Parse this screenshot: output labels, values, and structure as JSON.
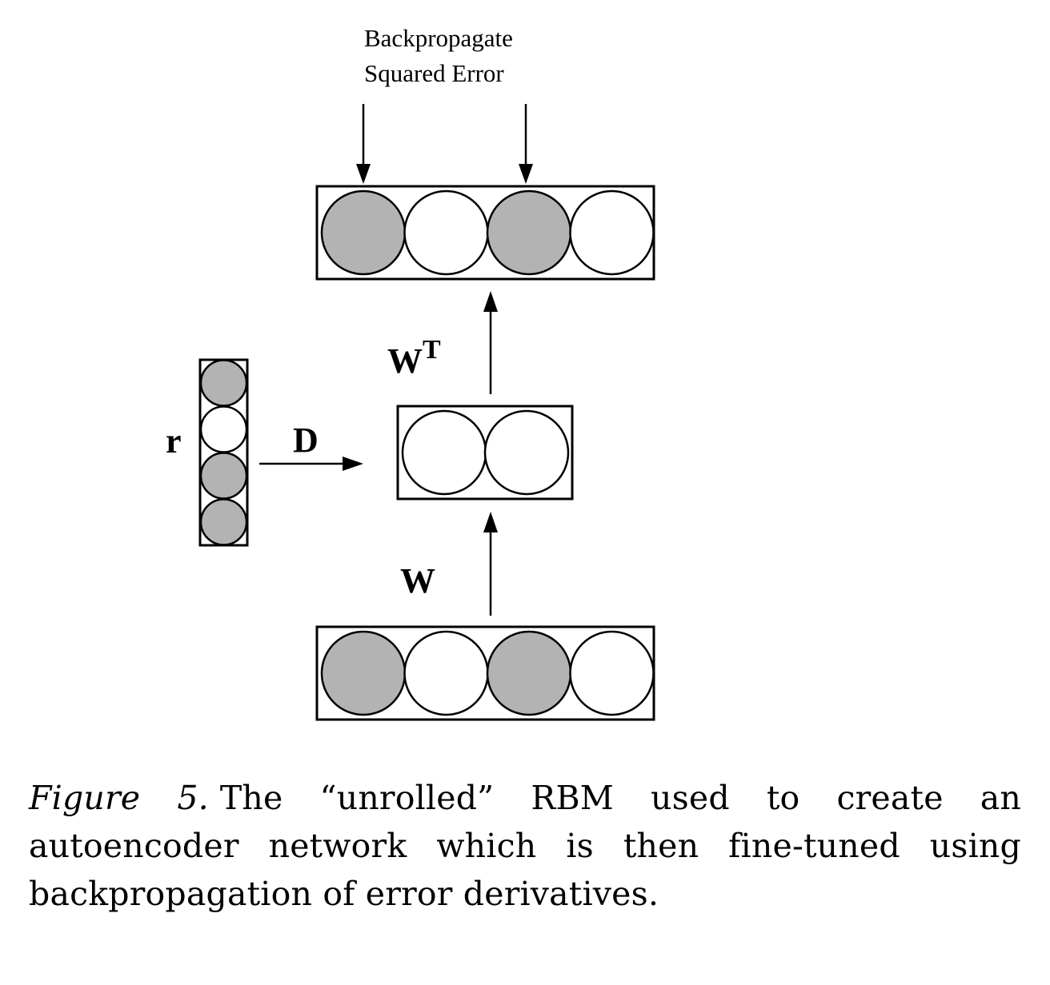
{
  "labels": {
    "top_line1": "Backpropagate",
    "top_line2": "Squared Error",
    "wt_base": "W",
    "wt_sup": "T",
    "w": "W",
    "r": "r",
    "d": "D"
  },
  "layers": {
    "output_units": [
      true,
      false,
      true,
      false
    ],
    "hidden_units": [
      false,
      false
    ],
    "input_units": [
      true,
      false,
      true,
      false
    ],
    "r_units": [
      true,
      false,
      true,
      true
    ]
  },
  "colors": {
    "filled": "#b3b3b3",
    "empty": "#ffffff",
    "stroke": "#000000"
  },
  "caption": {
    "label": "Figure 5.",
    "text": "The “unrolled” RBM used to create an autoencoder network which is then fine-tuned using backpropagation of error derivatives."
  }
}
